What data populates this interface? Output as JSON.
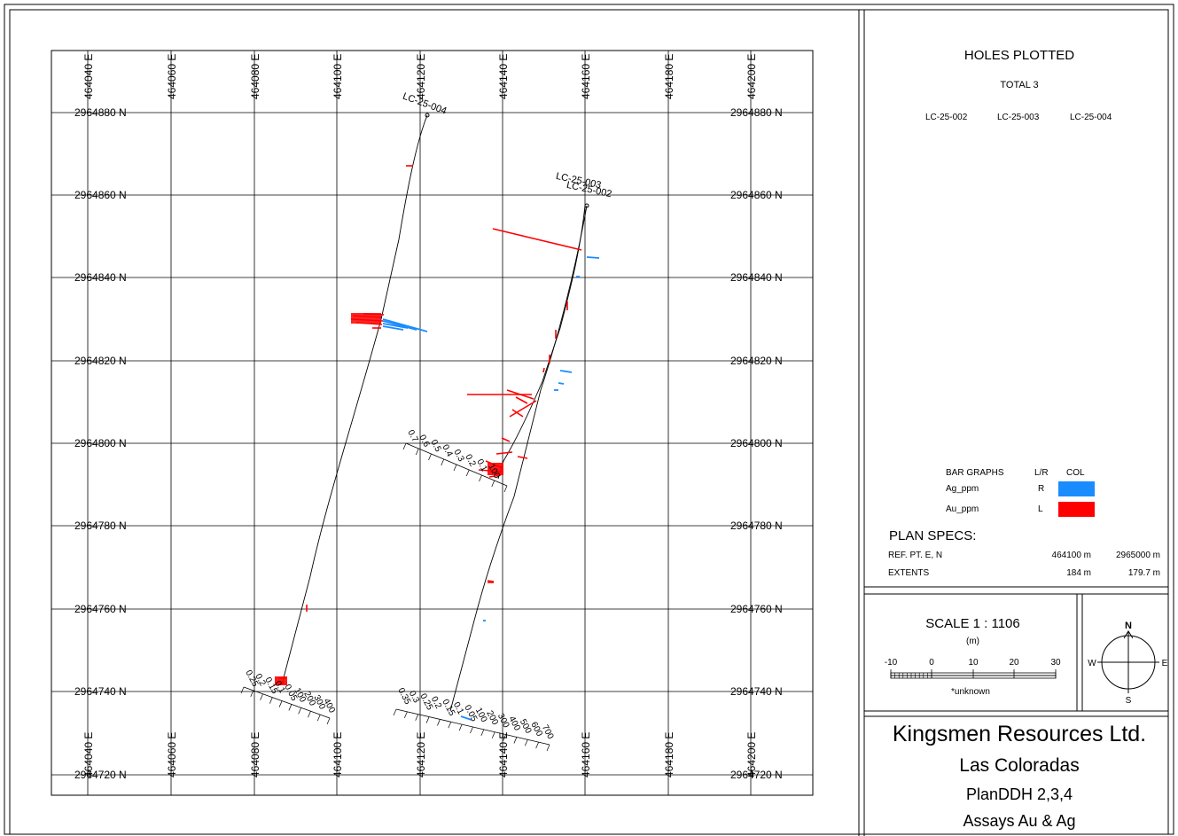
{
  "map": {
    "easting_labels": [
      "464040 E",
      "464060 E",
      "464080 E",
      "464100 E",
      "464120 E",
      "464140 E",
      "464160 E",
      "464180 E",
      "464200 E"
    ],
    "northing_labels": [
      "2964880 N",
      "2964860 N",
      "2964840 N",
      "2964820 N",
      "2964800 N",
      "2964780 N",
      "2964760 N",
      "2964740 N",
      "2964720 N"
    ],
    "collar_labels": [
      "LC-25-004",
      "LC-25-003",
      "LC-25-002"
    ],
    "scale_au_hole002": [
      "0.7",
      "0.6",
      "0.5",
      "0.4",
      "0.3",
      "0.2",
      "0.1",
      "100"
    ],
    "scale_au_hole004": [
      "0.25",
      "0.2",
      "0.15",
      "0.1",
      "0.05",
      "100",
      "200",
      "300",
      "400"
    ],
    "scale_au_hole003": [
      "0.35",
      "0.3",
      "0.25",
      "0.2",
      "0.15",
      "0.1",
      "0.05",
      "100",
      "200",
      "300",
      "400",
      "500",
      "600",
      "700"
    ],
    "colors": {
      "ag": "#1a8cff",
      "au": "#ff0000",
      "trace": "#000000",
      "grid": "#000000"
    }
  },
  "holes_plotted": {
    "title": "HOLES PLOTTED",
    "total": "TOTAL 3",
    "ids": [
      "LC-25-002",
      "LC-25-003",
      "LC-25-004"
    ]
  },
  "legend": {
    "title": "BAR GRAPHS",
    "lr_header": "L/R",
    "col_header": "COL",
    "items": [
      {
        "name": "Ag_ppm",
        "side": "R",
        "color": "#1a8cff"
      },
      {
        "name": "Au_ppm",
        "side": "L",
        "color": "#ff0000"
      }
    ]
  },
  "plan_specs": {
    "title": "PLAN  SPECS:",
    "ref_label": "REF. PT.  E, N",
    "ref_e": "464100 m",
    "ref_n": "2965000 m",
    "ext_label": "EXTENTS",
    "ext_e": "184 m",
    "ext_n": "179.7 m"
  },
  "scale": {
    "title": "SCALE  1 : 1106",
    "unit": "(m)",
    "ticks": [
      "-10",
      "0",
      "10",
      "20",
      "30"
    ],
    "note": "*unknown"
  },
  "compass": {
    "n": "N",
    "s": "S",
    "e": "E",
    "w": "W"
  },
  "title_block": {
    "company": "Kingsmen Resources Ltd.",
    "project": "Las Coloradas",
    "plan": "PlanDDH 2,3,4",
    "assays": "Assays Au & Ag"
  }
}
